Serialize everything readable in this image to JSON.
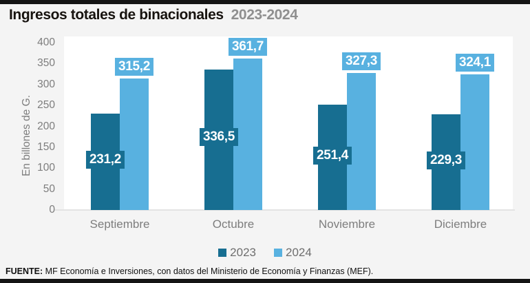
{
  "header": {
    "title": "Ingresos totales de binacionales",
    "subtitle": "2023-2024"
  },
  "chart_data": {
    "type": "bar",
    "title": "Ingresos totales de binacionales",
    "subtitle": "2023-2024",
    "categories": [
      "Septiembre",
      "Octubre",
      "Noviembre",
      "Diciembre"
    ],
    "series": [
      {
        "name": "2023",
        "color": "#176E91",
        "values": [
          231.2,
          336.5,
          251.4,
          229.3
        ],
        "value_labels": [
          "231,2",
          "336,5",
          "251,4",
          "229,3"
        ]
      },
      {
        "name": "2024",
        "color": "#58B1E0",
        "values": [
          315.2,
          361.7,
          327.3,
          324.1
        ],
        "value_labels": [
          "315,2",
          "361,7",
          "327,3",
          "324,1"
        ]
      }
    ],
    "ylabel": "En billones de G.",
    "xlabel": "",
    "ylim": [
      0,
      400
    ],
    "yticks": [
      0,
      50,
      100,
      150,
      200,
      250,
      300,
      350,
      400
    ],
    "grid": false,
    "legend_position": "bottom"
  },
  "footer": {
    "source_label": "FUENTE:",
    "source_text": "MF Economía e Inversiones, con datos del Ministerio de Economía y Finanzas (MEF)."
  }
}
